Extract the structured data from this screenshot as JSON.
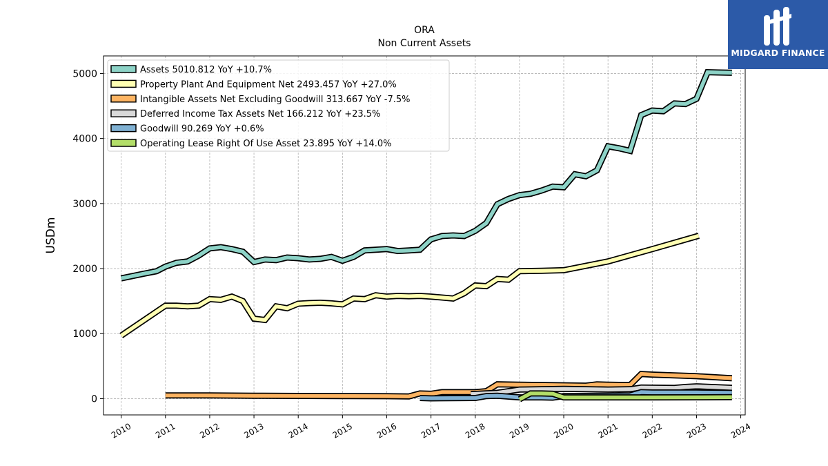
{
  "brand": {
    "name": "MIDGARD FINANCE",
    "mark": "midgard-logo-mark",
    "bg": "#2c5aa8"
  },
  "chart_data": {
    "type": "line",
    "title": "ORA",
    "subtitle": "Non Current  Assets",
    "ylabel": "USDm",
    "xlabel": "",
    "xlim": [
      2009.6,
      2024.1
    ],
    "ylim": [
      -250,
      5270
    ],
    "yticks": [
      0,
      1000,
      2000,
      3000,
      4000,
      5000
    ],
    "xticks": [
      2010,
      2011,
      2012,
      2013,
      2014,
      2015,
      2016,
      2017,
      2018,
      2019,
      2020,
      2021,
      2022,
      2023,
      2024
    ],
    "grid": true,
    "legend_position": "top-left",
    "series": [
      {
        "name": "Assets",
        "legend": "Assets  5010.812 YoY +10.7%",
        "color": "#8dd3c7",
        "points": [
          [
            2010.0,
            1850
          ],
          [
            2010.5,
            1920
          ],
          [
            2010.8,
            1960
          ],
          [
            2011.0,
            2030
          ],
          [
            2011.25,
            2090
          ],
          [
            2011.5,
            2110
          ],
          [
            2011.75,
            2200
          ],
          [
            2012.0,
            2310
          ],
          [
            2012.25,
            2330
          ],
          [
            2012.5,
            2300
          ],
          [
            2012.75,
            2260
          ],
          [
            2013.0,
            2100
          ],
          [
            2013.25,
            2140
          ],
          [
            2013.5,
            2130
          ],
          [
            2013.75,
            2170
          ],
          [
            2014.0,
            2160
          ],
          [
            2014.25,
            2140
          ],
          [
            2014.5,
            2150
          ],
          [
            2014.75,
            2180
          ],
          [
            2015.0,
            2120
          ],
          [
            2015.25,
            2180
          ],
          [
            2015.5,
            2280
          ],
          [
            2016.0,
            2300
          ],
          [
            2016.25,
            2270
          ],
          [
            2016.5,
            2280
          ],
          [
            2016.75,
            2290
          ],
          [
            2017.0,
            2450
          ],
          [
            2017.25,
            2500
          ],
          [
            2017.5,
            2510
          ],
          [
            2017.75,
            2500
          ],
          [
            2018.0,
            2580
          ],
          [
            2018.25,
            2700
          ],
          [
            2018.5,
            2990
          ],
          [
            2018.75,
            3070
          ],
          [
            2019.0,
            3130
          ],
          [
            2019.25,
            3150
          ],
          [
            2019.5,
            3200
          ],
          [
            2019.75,
            3260
          ],
          [
            2020.0,
            3250
          ],
          [
            2020.25,
            3450
          ],
          [
            2020.5,
            3420
          ],
          [
            2020.75,
            3510
          ],
          [
            2021.0,
            3880
          ],
          [
            2021.25,
            3850
          ],
          [
            2021.5,
            3810
          ],
          [
            2021.75,
            4360
          ],
          [
            2022.0,
            4430
          ],
          [
            2022.25,
            4420
          ],
          [
            2022.5,
            4540
          ],
          [
            2022.75,
            4530
          ],
          [
            2023.0,
            4610
          ],
          [
            2023.25,
            5020
          ],
          [
            2023.5,
            5015
          ],
          [
            2023.8,
            5011
          ]
        ]
      },
      {
        "name": "Property Plant And Equipment Net",
        "legend": "Property Plant And Equipment Net  2493.457 YoY +27.0%",
        "color": "#ffffb3",
        "points": [
          [
            2010.0,
            970
          ],
          [
            2011.0,
            1430
          ],
          [
            2011.25,
            1430
          ],
          [
            2011.5,
            1420
          ],
          [
            2011.75,
            1430
          ],
          [
            2012.0,
            1530
          ],
          [
            2012.25,
            1520
          ],
          [
            2012.5,
            1570
          ],
          [
            2012.75,
            1500
          ],
          [
            2013.0,
            1230
          ],
          [
            2013.25,
            1210
          ],
          [
            2013.5,
            1420
          ],
          [
            2013.75,
            1390
          ],
          [
            2014.0,
            1460
          ],
          [
            2014.25,
            1470
          ],
          [
            2014.5,
            1475
          ],
          [
            2014.75,
            1465
          ],
          [
            2015.0,
            1450
          ],
          [
            2015.25,
            1540
          ],
          [
            2015.5,
            1530
          ],
          [
            2015.75,
            1590
          ],
          [
            2016.0,
            1570
          ],
          [
            2016.25,
            1580
          ],
          [
            2016.5,
            1575
          ],
          [
            2016.75,
            1580
          ],
          [
            2017.0,
            1570
          ],
          [
            2017.5,
            1540
          ],
          [
            2017.75,
            1620
          ],
          [
            2018.0,
            1740
          ],
          [
            2018.25,
            1730
          ],
          [
            2018.5,
            1840
          ],
          [
            2018.75,
            1830
          ],
          [
            2019.0,
            1960
          ],
          [
            2019.5,
            1965
          ],
          [
            2020.0,
            1975
          ],
          [
            2021.0,
            2110
          ],
          [
            2022.0,
            2300
          ],
          [
            2023.05,
            2505
          ]
        ]
      },
      {
        "name": "Intangible Assets Net Excluding Goodwill",
        "legend": "Intangible Assets Net Excluding Goodwill  313.667 YoY -7.5%",
        "color": "#fdb462",
        "points": [
          [
            2011.0,
            50
          ],
          [
            2012.0,
            50
          ],
          [
            2013.0,
            45
          ],
          [
            2014.0,
            42
          ],
          [
            2015.0,
            40
          ],
          [
            2016.0,
            38
          ],
          [
            2016.5,
            35
          ],
          [
            2016.75,
            80
          ],
          [
            2017.0,
            75
          ],
          [
            2017.25,
            100
          ],
          [
            2018.0,
            100
          ],
          [
            2018.25,
            115
          ],
          [
            2018.5,
            220
          ],
          [
            2019.0,
            215
          ],
          [
            2020.0,
            205
          ],
          [
            2020.5,
            200
          ],
          [
            2020.75,
            220
          ],
          [
            2021.0,
            215
          ],
          [
            2021.5,
            210
          ],
          [
            2021.75,
            380
          ],
          [
            2022.0,
            370
          ],
          [
            2023.0,
            345
          ],
          [
            2023.8,
            314
          ]
        ]
      },
      {
        "name": "Deferred Income Tax Assets Net",
        "legend": "Deferred Income Tax Assets Net  166.212 YoY +23.5%",
        "color": "#d9d9d9",
        "points": [
          [
            2017.9,
            70
          ],
          [
            2018.5,
            90
          ],
          [
            2019.0,
            140
          ],
          [
            2019.5,
            145
          ],
          [
            2020.0,
            150
          ],
          [
            2021.0,
            140
          ],
          [
            2021.5,
            145
          ],
          [
            2021.75,
            170
          ],
          [
            2022.5,
            165
          ],
          [
            2022.75,
            180
          ],
          [
            2023.0,
            190
          ],
          [
            2023.8,
            166
          ]
        ]
      },
      {
        "name": "Goodwill",
        "legend": "Goodwill  90.269 YoY +0.6%",
        "color": "#80b1d3",
        "points": [
          [
            2016.75,
            10
          ],
          [
            2017.0,
            5
          ],
          [
            2018.0,
            10
          ],
          [
            2018.25,
            40
          ],
          [
            2018.5,
            45
          ],
          [
            2019.0,
            20
          ],
          [
            2019.5,
            20
          ],
          [
            2019.75,
            15
          ],
          [
            2020.0,
            40
          ],
          [
            2021.0,
            45
          ],
          [
            2021.5,
            50
          ],
          [
            2021.75,
            100
          ],
          [
            2022.0,
            95
          ],
          [
            2023.0,
            95
          ],
          [
            2023.8,
            90
          ]
        ]
      },
      {
        "name": "Operating Lease Right Of Use Asset",
        "legend": "Operating Lease Right Of Use Asset  23.895 YoY +14.0%",
        "color": "#b3de69",
        "points": [
          [
            2019.0,
            -10
          ],
          [
            2019.25,
            80
          ],
          [
            2019.5,
            80
          ],
          [
            2019.75,
            75
          ],
          [
            2020.0,
            20
          ],
          [
            2021.0,
            20
          ],
          [
            2022.0,
            20
          ],
          [
            2023.0,
            21
          ],
          [
            2023.8,
            24
          ]
        ]
      }
    ]
  }
}
